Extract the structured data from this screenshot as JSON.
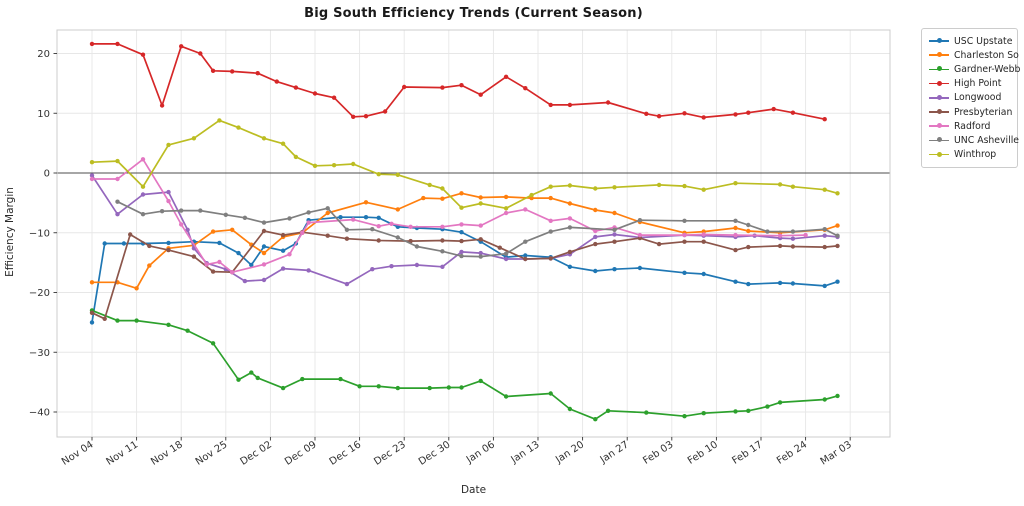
{
  "chart_data": {
    "type": "line",
    "title": "Big South Efficiency Trends (Current Season)",
    "xlabel": "Date",
    "ylabel": "Efficiency Margin",
    "x_unit": "days since Nov 04",
    "x_tick_labels": [
      "Nov 04",
      "Nov 11",
      "Nov 18",
      "Nov 25",
      "Dec 02",
      "Dec 09",
      "Dec 16",
      "Dec 23",
      "Dec 30",
      "Jan 06",
      "Jan 13",
      "Jan 20",
      "Jan 27",
      "Feb 03",
      "Feb 10",
      "Feb 17",
      "Feb 24",
      "Mar 03"
    ],
    "x_tick_days": [
      0,
      7,
      14,
      21,
      28,
      35,
      42,
      49,
      56,
      63,
      70,
      77,
      84,
      91,
      98,
      105,
      112,
      119
    ],
    "xlim_days": [
      -5.5,
      125.3
    ],
    "ylim": [
      -44.2,
      23.9
    ],
    "yticks": [
      20,
      10,
      0,
      -10,
      -20,
      -30,
      -40
    ],
    "grid": true,
    "zero_line_y": 0,
    "legend_position": "outside-right",
    "marker": "circle",
    "series": [
      {
        "name": "USC Upstate",
        "color": "#1f77b4",
        "points": [
          [
            0,
            -25.0
          ],
          [
            2,
            -11.8
          ],
          [
            5,
            -11.8
          ],
          [
            8,
            -11.8
          ],
          [
            12,
            -11.7
          ],
          [
            16,
            -11.5
          ],
          [
            20,
            -11.7
          ],
          [
            23,
            -13.4
          ],
          [
            25,
            -15.4
          ],
          [
            27,
            -12.3
          ],
          [
            30,
            -13.0
          ],
          [
            32,
            -11.8
          ],
          [
            34,
            -7.9
          ],
          [
            39,
            -7.4
          ],
          [
            43,
            -7.4
          ],
          [
            45,
            -7.5
          ],
          [
            48,
            -9.0
          ],
          [
            51,
            -9.2
          ],
          [
            55,
            -9.4
          ],
          [
            58,
            -9.9
          ],
          [
            61,
            -11.5
          ],
          [
            65,
            -14.1
          ],
          [
            68,
            -13.8
          ],
          [
            72,
            -14.1
          ],
          [
            75,
            -15.7
          ],
          [
            79,
            -16.4
          ],
          [
            82,
            -16.1
          ],
          [
            86,
            -15.9
          ],
          [
            93,
            -16.7
          ],
          [
            96,
            -16.9
          ],
          [
            101,
            -18.2
          ],
          [
            103,
            -18.6
          ],
          [
            108,
            -18.4
          ],
          [
            110,
            -18.5
          ],
          [
            115,
            -18.9
          ],
          [
            117,
            -18.2
          ]
        ]
      },
      {
        "name": "Charleston So",
        "color": "#ff7f0e",
        "points": [
          [
            0,
            -18.3
          ],
          [
            4,
            -18.3
          ],
          [
            7,
            -19.3
          ],
          [
            9,
            -15.5
          ],
          [
            12,
            -12.6
          ],
          [
            16,
            -12.1
          ],
          [
            19,
            -9.8
          ],
          [
            22,
            -9.5
          ],
          [
            25,
            -12.0
          ],
          [
            27,
            -13.4
          ],
          [
            30,
            -10.7
          ],
          [
            33,
            -10.0
          ],
          [
            37,
            -6.7
          ],
          [
            43,
            -4.9
          ],
          [
            48,
            -6.1
          ],
          [
            52,
            -4.2
          ],
          [
            55,
            -4.3
          ],
          [
            58,
            -3.4
          ],
          [
            61,
            -4.1
          ],
          [
            65,
            -4.0
          ],
          [
            69,
            -4.2
          ],
          [
            72,
            -4.2
          ],
          [
            75,
            -5.1
          ],
          [
            79,
            -6.2
          ],
          [
            82,
            -6.7
          ],
          [
            86,
            -8.2
          ],
          [
            93,
            -10.0
          ],
          [
            96,
            -9.8
          ],
          [
            101,
            -9.2
          ],
          [
            103,
            -9.7
          ],
          [
            108,
            -10.0
          ],
          [
            115,
            -9.5
          ],
          [
            117,
            -8.8
          ]
        ]
      },
      {
        "name": "Gardner-Webb",
        "color": "#2ca02c",
        "points": [
          [
            0,
            -23.0
          ],
          [
            4,
            -24.7
          ],
          [
            7,
            -24.7
          ],
          [
            12,
            -25.4
          ],
          [
            15,
            -26.4
          ],
          [
            19,
            -28.5
          ],
          [
            23,
            -34.6
          ],
          [
            25,
            -33.4
          ],
          [
            26,
            -34.3
          ],
          [
            30,
            -36.0
          ],
          [
            33,
            -34.5
          ],
          [
            39,
            -34.5
          ],
          [
            42,
            -35.7
          ],
          [
            45,
            -35.7
          ],
          [
            48,
            -36.0
          ],
          [
            53,
            -36.0
          ],
          [
            56,
            -35.9
          ],
          [
            58,
            -35.9
          ],
          [
            61,
            -34.8
          ],
          [
            65,
            -37.4
          ],
          [
            72,
            -36.9
          ],
          [
            75,
            -39.5
          ],
          [
            79,
            -41.2
          ],
          [
            81,
            -39.8
          ],
          [
            87,
            -40.1
          ],
          [
            93,
            -40.7
          ],
          [
            96,
            -40.2
          ],
          [
            101,
            -39.9
          ],
          [
            103,
            -39.8
          ],
          [
            106,
            -39.1
          ],
          [
            108,
            -38.4
          ],
          [
            115,
            -37.9
          ],
          [
            117,
            -37.3
          ]
        ]
      },
      {
        "name": "High Point",
        "color": "#d62728",
        "points": [
          [
            0,
            21.6
          ],
          [
            4,
            21.6
          ],
          [
            8,
            19.8
          ],
          [
            11,
            11.3
          ],
          [
            14,
            21.2
          ],
          [
            17,
            20.0
          ],
          [
            19,
            17.1
          ],
          [
            22,
            17.0
          ],
          [
            26,
            16.7
          ],
          [
            29,
            15.3
          ],
          [
            32,
            14.3
          ],
          [
            35,
            13.3
          ],
          [
            38,
            12.6
          ],
          [
            41,
            9.4
          ],
          [
            43,
            9.5
          ],
          [
            46,
            10.3
          ],
          [
            49,
            14.4
          ],
          [
            55,
            14.3
          ],
          [
            58,
            14.7
          ],
          [
            61,
            13.1
          ],
          [
            65,
            16.1
          ],
          [
            68,
            14.2
          ],
          [
            72,
            11.4
          ],
          [
            75,
            11.4
          ],
          [
            81,
            11.8
          ],
          [
            87,
            9.9
          ],
          [
            89,
            9.5
          ],
          [
            93,
            10.0
          ],
          [
            96,
            9.3
          ],
          [
            101,
            9.8
          ],
          [
            103,
            10.1
          ],
          [
            107,
            10.7
          ],
          [
            110,
            10.1
          ],
          [
            115,
            9.0
          ]
        ]
      },
      {
        "name": "Longwood",
        "color": "#9467bd",
        "points": [
          [
            0,
            -0.4
          ],
          [
            4,
            -6.9
          ],
          [
            8,
            -3.6
          ],
          [
            12,
            -3.2
          ],
          [
            15,
            -9.5
          ],
          [
            16,
            -12.6
          ],
          [
            18,
            -15.1
          ],
          [
            21,
            -16.1
          ],
          [
            24,
            -18.1
          ],
          [
            27,
            -17.9
          ],
          [
            30,
            -16.0
          ],
          [
            34,
            -16.3
          ],
          [
            40,
            -18.6
          ],
          [
            44,
            -16.1
          ],
          [
            47,
            -15.6
          ],
          [
            51,
            -15.4
          ],
          [
            55,
            -15.7
          ],
          [
            58,
            -13.2
          ],
          [
            61,
            -13.4
          ],
          [
            65,
            -14.4
          ],
          [
            68,
            -14.4
          ],
          [
            72,
            -14.3
          ],
          [
            75,
            -13.6
          ],
          [
            79,
            -10.7
          ],
          [
            82,
            -10.3
          ],
          [
            86,
            -10.8
          ],
          [
            93,
            -10.4
          ],
          [
            96,
            -10.5
          ],
          [
            101,
            -10.7
          ],
          [
            104,
            -10.5
          ],
          [
            108,
            -10.9
          ],
          [
            110,
            -11.0
          ],
          [
            115,
            -10.5
          ],
          [
            117,
            -10.7
          ]
        ]
      },
      {
        "name": "Presbyterian",
        "color": "#8c564b",
        "points": [
          [
            0,
            -23.4
          ],
          [
            2,
            -24.4
          ],
          [
            6,
            -10.3
          ],
          [
            9,
            -12.2
          ],
          [
            12,
            -12.9
          ],
          [
            16,
            -14.0
          ],
          [
            19,
            -16.5
          ],
          [
            22,
            -16.6
          ],
          [
            27,
            -9.7
          ],
          [
            30,
            -10.4
          ],
          [
            33,
            -9.9
          ],
          [
            37,
            -10.5
          ],
          [
            40,
            -11.0
          ],
          [
            45,
            -11.3
          ],
          [
            50,
            -11.4
          ],
          [
            55,
            -11.3
          ],
          [
            58,
            -11.4
          ],
          [
            61,
            -11.1
          ],
          [
            64,
            -12.5
          ],
          [
            68,
            -14.4
          ],
          [
            72,
            -14.3
          ],
          [
            75,
            -13.2
          ],
          [
            79,
            -11.9
          ],
          [
            82,
            -11.5
          ],
          [
            86,
            -10.9
          ],
          [
            89,
            -11.9
          ],
          [
            93,
            -11.5
          ],
          [
            96,
            -11.5
          ],
          [
            101,
            -12.9
          ],
          [
            103,
            -12.4
          ],
          [
            108,
            -12.2
          ],
          [
            110,
            -12.3
          ],
          [
            115,
            -12.4
          ],
          [
            117,
            -12.2
          ]
        ]
      },
      {
        "name": "Radford",
        "color": "#e377c2",
        "points": [
          [
            0,
            -1.0
          ],
          [
            4,
            -1.0
          ],
          [
            8,
            2.3
          ],
          [
            12,
            -4.7
          ],
          [
            14,
            -8.6
          ],
          [
            18,
            -15.3
          ],
          [
            20,
            -14.9
          ],
          [
            22,
            -16.6
          ],
          [
            27,
            -15.3
          ],
          [
            31,
            -13.6
          ],
          [
            33,
            -10.0
          ],
          [
            34,
            -8.3
          ],
          [
            41,
            -7.8
          ],
          [
            45,
            -8.9
          ],
          [
            47,
            -8.5
          ],
          [
            50,
            -9.0
          ],
          [
            55,
            -9.0
          ],
          [
            58,
            -8.6
          ],
          [
            61,
            -8.8
          ],
          [
            65,
            -6.7
          ],
          [
            68,
            -6.1
          ],
          [
            72,
            -8.0
          ],
          [
            75,
            -7.6
          ],
          [
            79,
            -9.7
          ],
          [
            82,
            -9.1
          ],
          [
            86,
            -10.4
          ],
          [
            93,
            -10.4
          ],
          [
            96,
            -10.3
          ],
          [
            101,
            -10.4
          ],
          [
            108,
            -10.5
          ],
          [
            112,
            -10.4
          ]
        ]
      },
      {
        "name": "UNC Asheville",
        "color": "#7f7f7f",
        "points": [
          [
            4,
            -4.8
          ],
          [
            8,
            -6.9
          ],
          [
            11,
            -6.4
          ],
          [
            14,
            -6.3
          ],
          [
            17,
            -6.3
          ],
          [
            21,
            -7.0
          ],
          [
            24,
            -7.5
          ],
          [
            27,
            -8.3
          ],
          [
            31,
            -7.6
          ],
          [
            34,
            -6.6
          ],
          [
            37,
            -5.9
          ],
          [
            40,
            -9.5
          ],
          [
            44,
            -9.4
          ],
          [
            48,
            -10.8
          ],
          [
            51,
            -12.3
          ],
          [
            55,
            -13.1
          ],
          [
            58,
            -13.9
          ],
          [
            61,
            -14.0
          ],
          [
            65,
            -13.5
          ],
          [
            68,
            -11.5
          ],
          [
            72,
            -9.8
          ],
          [
            75,
            -9.1
          ],
          [
            82,
            -9.5
          ],
          [
            86,
            -7.9
          ],
          [
            93,
            -8.0
          ],
          [
            101,
            -8.0
          ],
          [
            103,
            -8.7
          ],
          [
            106,
            -9.8
          ],
          [
            110,
            -9.8
          ],
          [
            115,
            -9.4
          ],
          [
            117,
            -10.5
          ]
        ]
      },
      {
        "name": "Winthrop",
        "color": "#bcbd22",
        "points": [
          [
            0,
            1.8
          ],
          [
            4,
            2.0
          ],
          [
            8,
            -2.3
          ],
          [
            12,
            4.7
          ],
          [
            16,
            5.8
          ],
          [
            20,
            8.8
          ],
          [
            23,
            7.6
          ],
          [
            27,
            5.8
          ],
          [
            30,
            4.9
          ],
          [
            32,
            2.7
          ],
          [
            35,
            1.2
          ],
          [
            38,
            1.3
          ],
          [
            41,
            1.5
          ],
          [
            45,
            -0.2
          ],
          [
            48,
            -0.3
          ],
          [
            53,
            -2.0
          ],
          [
            55,
            -2.6
          ],
          [
            58,
            -5.8
          ],
          [
            61,
            -5.1
          ],
          [
            65,
            -5.9
          ],
          [
            69,
            -3.7
          ],
          [
            72,
            -2.3
          ],
          [
            75,
            -2.1
          ],
          [
            79,
            -2.6
          ],
          [
            82,
            -2.4
          ],
          [
            89,
            -2.0
          ],
          [
            93,
            -2.2
          ],
          [
            96,
            -2.8
          ],
          [
            101,
            -1.7
          ],
          [
            108,
            -1.9
          ],
          [
            110,
            -2.3
          ],
          [
            115,
            -2.8
          ],
          [
            117,
            -3.4
          ]
        ]
      }
    ]
  },
  "style": {
    "grid_color": "#e7e7e7",
    "spine_color": "#cccccc",
    "zero_line_color": "#4d4d4d",
    "tick_label_color": "#333333",
    "title_color": "#1a1a1a"
  }
}
